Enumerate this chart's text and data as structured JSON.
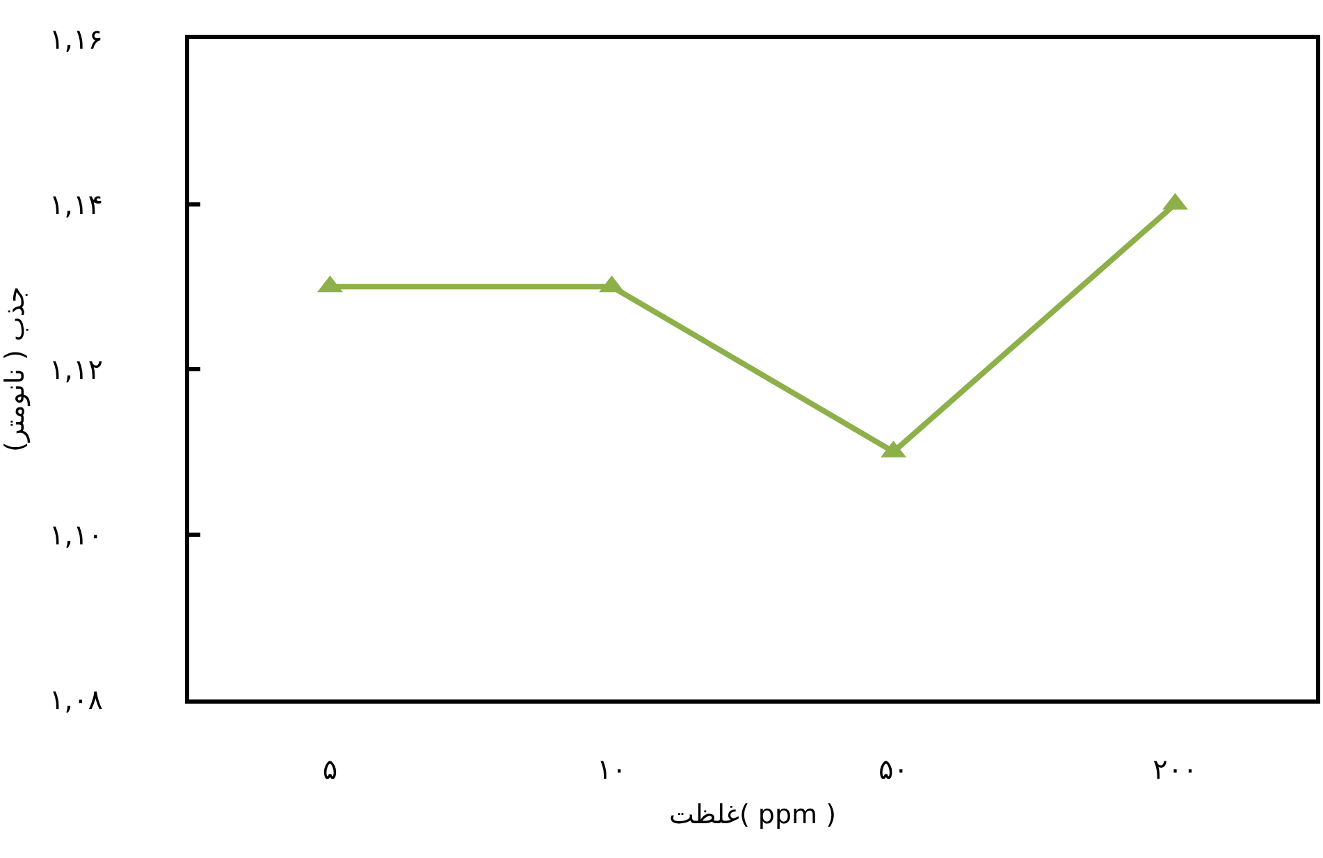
{
  "chart_data": {
    "type": "line",
    "xlabel": "غلظت( ppm )",
    "ylabel": "جذب ( نانومتر)",
    "categories": [
      "۵",
      "۱۰",
      "۵۰",
      "۲۰۰"
    ],
    "series": [
      {
        "color": "#8db04a",
        "values": [
          1.13,
          1.13,
          1.11,
          1.14
        ]
      }
    ],
    "ylim": [
      1.08,
      1.16
    ],
    "yticks": [
      {
        "value": 1.08,
        "label": "۱,۰۸"
      },
      {
        "value": 1.1,
        "label": "۱,۱۰"
      },
      {
        "value": 1.12,
        "label": "۱,۱۲"
      },
      {
        "value": 1.14,
        "label": "۱,۱۴"
      },
      {
        "value": 1.16,
        "label": "۱,۱۶"
      }
    ],
    "marker": "triangle",
    "line_style": "solid"
  }
}
